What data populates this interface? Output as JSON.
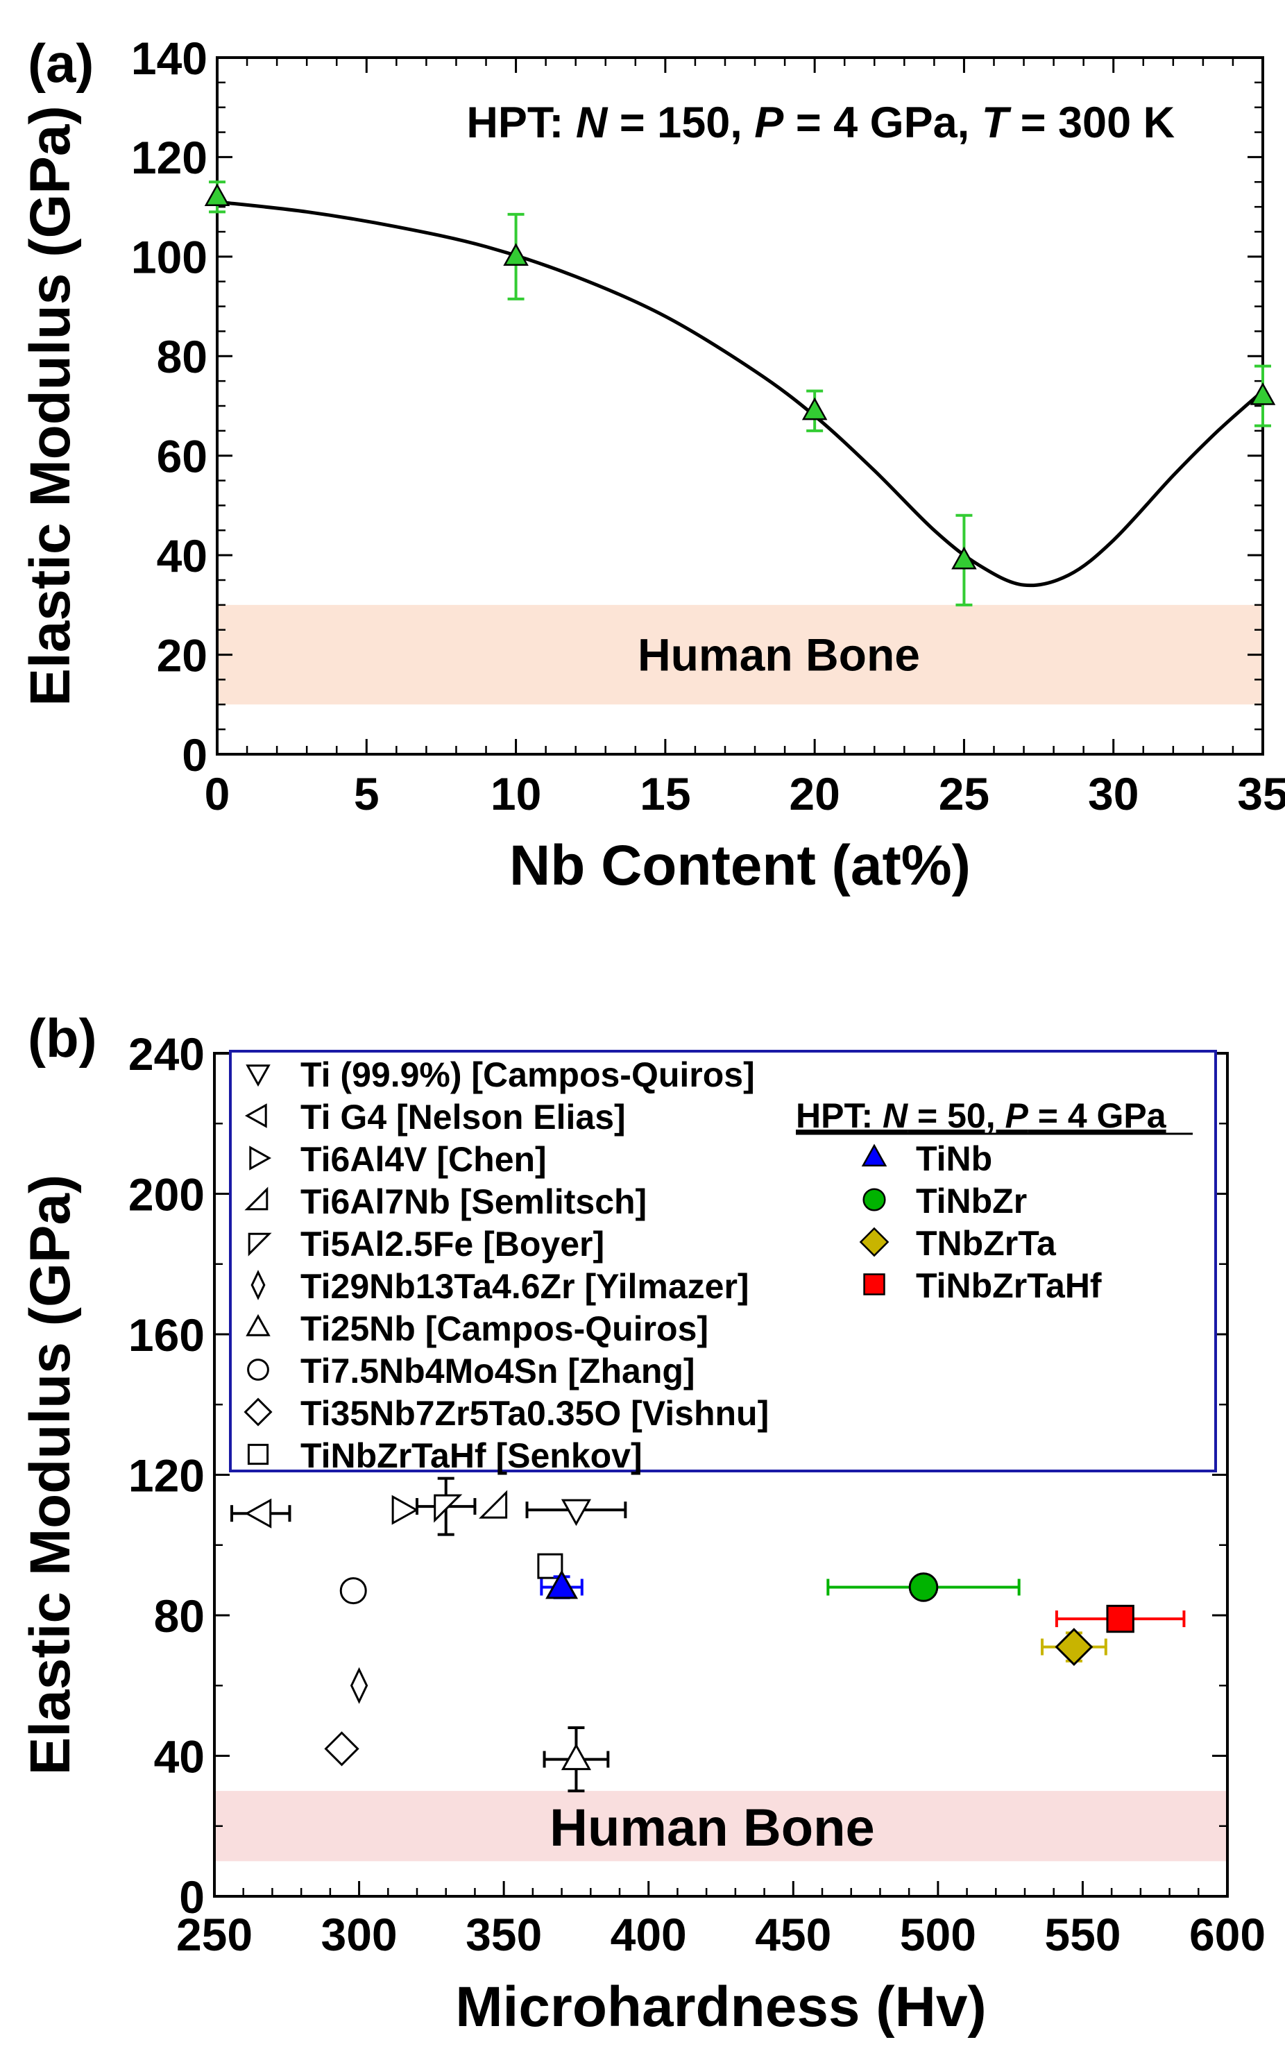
{
  "chart_data": [
    {
      "panel_label": "(a)",
      "type": "line",
      "annotation": {
        "parts": [
          {
            "text": "HPT: ",
            "italic": false
          },
          {
            "text": "N",
            "italic": true
          },
          {
            "text": " = 150, ",
            "italic": false
          },
          {
            "text": "P",
            "italic": true
          },
          {
            "text": " = 4 GPa, ",
            "italic": false
          },
          {
            "text": "T",
            "italic": true
          },
          {
            "text": " = 300 K",
            "italic": false
          }
        ]
      },
      "xlabel": "Nb Content (at%)",
      "ylabel": "Elastic Modulus (GPa)",
      "xlim": [
        0,
        35
      ],
      "ylim": [
        0,
        140
      ],
      "xticks": [
        "0",
        "5",
        "10",
        "15",
        "20",
        "25",
        "30",
        "35"
      ],
      "yticks": [
        "0",
        "20",
        "40",
        "60",
        "80",
        "100",
        "120",
        "140"
      ],
      "x_tick_values": [
        0,
        5,
        10,
        15,
        20,
        25,
        30,
        35
      ],
      "y_tick_values": [
        0,
        20,
        40,
        60,
        80,
        100,
        120,
        140
      ],
      "band": {
        "label": "Human Bone",
        "y_min": 10,
        "y_max": 30,
        "color": "#fce4d6"
      },
      "series": [
        {
          "marker": "triangle-up",
          "color": "#33cc33",
          "points": [
            {
              "x": 0,
              "y": 112,
              "err": 3
            },
            {
              "x": 10,
              "y": 100,
              "err": 8.5
            },
            {
              "x": 20,
              "y": 69,
              "err": 4
            },
            {
              "x": 25,
              "y": 39,
              "err": 9
            },
            {
              "x": 35,
              "y": 72,
              "err": 6
            }
          ]
        }
      ],
      "fit_curve": {
        "color": "#000000",
        "points": [
          [
            0,
            111
          ],
          [
            3,
            109
          ],
          [
            6,
            106
          ],
          [
            9,
            102
          ],
          [
            12,
            96
          ],
          [
            15,
            88
          ],
          [
            18,
            77
          ],
          [
            20,
            68
          ],
          [
            22,
            57
          ],
          [
            24,
            45
          ],
          [
            25.5,
            38
          ],
          [
            27,
            34
          ],
          [
            28.5,
            36
          ],
          [
            30,
            43
          ],
          [
            32,
            56
          ],
          [
            33.5,
            65
          ],
          [
            35,
            73
          ]
        ]
      }
    },
    {
      "panel_label": "(b)",
      "type": "scatter",
      "xlabel": "Microhardness (Hv)",
      "ylabel": "Elastic Modulus (GPa)",
      "xlim": [
        250,
        600
      ],
      "ylim": [
        0,
        240
      ],
      "xticks": [
        "250",
        "300",
        "350",
        "400",
        "450",
        "500",
        "550",
        "600"
      ],
      "yticks": [
        "0",
        "40",
        "80",
        "120",
        "160",
        "200",
        "240"
      ],
      "x_tick_values": [
        250,
        300,
        350,
        400,
        450,
        500,
        550,
        600
      ],
      "y_tick_values": [
        0,
        40,
        80,
        120,
        160,
        200,
        240
      ],
      "band": {
        "label": "Human Bone",
        "y_min": 10,
        "y_max": 30,
        "color": "#f9dede"
      },
      "legend_border_color": "#1a1aa6",
      "legend_literature": [
        {
          "label": "Ti (99.9%) [Campos-Quiros]",
          "marker": "triangle-down"
        },
        {
          "label": "Ti G4 [Nelson Elias]",
          "marker": "triangle-left"
        },
        {
          "label": "Ti6Al4V [Chen]",
          "marker": "triangle-right"
        },
        {
          "label": "Ti6Al7Nb [Semlitsch]",
          "marker": "corner-right"
        },
        {
          "label": "Ti5Al2.5Fe [Boyer]",
          "marker": "corner-left"
        },
        {
          "label": "Ti29Nb13Ta4.6Zr [Yilmazer]",
          "marker": "thin-diamond"
        },
        {
          "label": "Ti25Nb [Campos-Quiros]",
          "marker": "triangle-up"
        },
        {
          "label": "Ti7.5Nb4Mo4Sn [Zhang]",
          "marker": "circle"
        },
        {
          "label": "Ti35Nb7Zr5Ta0.35O [Vishnu]",
          "marker": "diamond"
        },
        {
          "label": "TiNbZrTaHf [Senkov]",
          "marker": "square"
        }
      ],
      "legend_hpt_title": {
        "parts": [
          {
            "text": "HPT: ",
            "italic": false
          },
          {
            "text": "N",
            "italic": true
          },
          {
            "text": " = 50, ",
            "italic": false
          },
          {
            "text": "P",
            "italic": true
          },
          {
            "text": " = 4 GPa",
            "italic": false
          }
        ]
      },
      "legend_hpt": [
        {
          "label": "TiNb",
          "marker": "triangle-up",
          "color": "#0000ff"
        },
        {
          "label": "TiNbZr",
          "marker": "circle",
          "color": "#00b300"
        },
        {
          "label": "TNbZrTa",
          "marker": "diamond",
          "color": "#c8b400"
        },
        {
          "label": "TiNbZrTaHf",
          "marker": "square",
          "color": "#ff0000"
        }
      ],
      "points_literature": [
        {
          "marker": "triangle-down",
          "x": 375,
          "y": 110,
          "xerr": 17
        },
        {
          "marker": "triangle-left",
          "x": 266,
          "y": 109,
          "xerr": 10
        },
        {
          "marker": "triangle-right",
          "x": 315,
          "y": 110
        },
        {
          "marker": "corner-right",
          "x": 347,
          "y": 111
        },
        {
          "marker": "corner-left",
          "x": 330,
          "y": 111,
          "xerr": 10,
          "yerr": 8
        },
        {
          "marker": "thin-diamond",
          "x": 300,
          "y": 60
        },
        {
          "marker": "triangle-up",
          "x": 375,
          "y": 39,
          "xerr": 11,
          "yerr": 9
        },
        {
          "marker": "circle",
          "x": 298,
          "y": 87
        },
        {
          "marker": "diamond",
          "x": 294,
          "y": 42
        },
        {
          "marker": "square",
          "x": 366,
          "y": 94
        }
      ],
      "points_hpt": [
        {
          "label": "TiNb",
          "marker": "triangle-up",
          "color": "#0000ff",
          "x": 370,
          "y": 88,
          "xerr": 7,
          "yerr": 3
        },
        {
          "label": "TiNbZr",
          "marker": "circle",
          "color": "#00b300",
          "x": 495,
          "y": 88,
          "xerr": 33
        },
        {
          "label": "TNbZrTa",
          "marker": "diamond",
          "color": "#c8b400",
          "x": 547,
          "y": 71,
          "xerr": 11,
          "yerr": 4
        },
        {
          "label": "TiNbZrTaHf",
          "marker": "square",
          "color": "#ff0000",
          "x": 563,
          "y": 79,
          "xerr": 22
        }
      ]
    }
  ]
}
